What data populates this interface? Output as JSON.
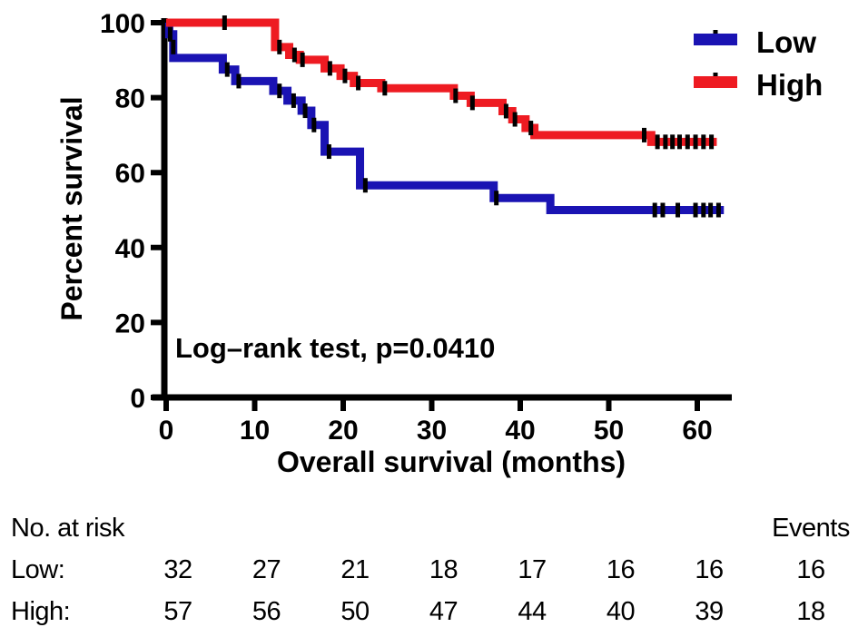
{
  "figure": {
    "y_axis": {
      "title": "Percent survival",
      "ticks": [
        0,
        20,
        40,
        60,
        80,
        100
      ]
    },
    "x_axis": {
      "title": "Overall survival (months)",
      "ticks": [
        0,
        10,
        20,
        30,
        40,
        50,
        60
      ]
    },
    "annotation": "Log–rank test, p=0.0410",
    "legend": [
      {
        "label": "Low",
        "color": "#1a13b3"
      },
      {
        "label": "High",
        "color": "#ee1b22"
      }
    ]
  },
  "chart_data": {
    "type": "line",
    "subtype": "kaplan-meier-step-curve",
    "title": "",
    "xlabel": "Overall survival (months)",
    "ylabel": "Percent survival",
    "xlim": [
      0,
      65
    ],
    "ylim": [
      0,
      100
    ],
    "grid": false,
    "legend_position": "top-right",
    "annotation": "Log–rank test, p=0.0410",
    "series": [
      {
        "name": "Low",
        "color": "#1a13b3",
        "steps": [
          [
            0,
            100
          ],
          [
            0.35,
            96.9
          ],
          [
            0.8,
            90.6
          ],
          [
            6.4,
            87.5
          ],
          [
            7.8,
            84.4
          ],
          [
            12.1,
            81.8
          ],
          [
            13.7,
            79.2
          ],
          [
            15.3,
            76.5
          ],
          [
            16.4,
            72.7
          ],
          [
            17.9,
            65.6
          ],
          [
            21.9,
            56.6
          ],
          [
            37.0,
            53.2
          ],
          [
            43.4,
            50
          ],
          [
            63,
            50
          ]
        ],
        "censor_marks": [
          [
            0.45,
            96.9
          ],
          [
            0.8,
            93.5
          ],
          [
            6.9,
            87.5
          ],
          [
            8.2,
            84.4
          ],
          [
            12.8,
            81.8
          ],
          [
            14.4,
            79.2
          ],
          [
            15.7,
            76.5
          ],
          [
            16.7,
            72.7
          ],
          [
            18.4,
            65.6
          ],
          [
            22.5,
            56.6
          ],
          [
            37.3,
            53.2
          ],
          [
            55.2,
            50
          ],
          [
            56.1,
            50
          ],
          [
            57.8,
            50
          ],
          [
            59.8,
            50
          ],
          [
            60.7,
            50
          ],
          [
            61.5,
            50
          ],
          [
            62.4,
            50
          ]
        ]
      },
      {
        "name": "High",
        "color": "#ee1b22",
        "steps": [
          [
            0,
            100
          ],
          [
            12.3,
            93.5
          ],
          [
            13.9,
            91.4
          ],
          [
            15.1,
            90.1
          ],
          [
            17.9,
            87.8
          ],
          [
            19.7,
            85.8
          ],
          [
            21.2,
            83.9
          ],
          [
            24.3,
            82.5
          ],
          [
            32.5,
            80.5
          ],
          [
            34.4,
            78.6
          ],
          [
            38.0,
            76.4
          ],
          [
            39.1,
            74.2
          ],
          [
            40.6,
            71.9
          ],
          [
            41.6,
            70.0
          ],
          [
            54.8,
            68.2
          ],
          [
            62.2,
            68.2
          ]
        ],
        "censor_marks": [
          [
            6.6,
            100
          ],
          [
            12.8,
            93.5
          ],
          [
            14.5,
            91.4
          ],
          [
            15.4,
            90.1
          ],
          [
            18.5,
            87.8
          ],
          [
            20.2,
            85.8
          ],
          [
            21.7,
            83.9
          ],
          [
            24.7,
            82.5
          ],
          [
            32.7,
            80.5
          ],
          [
            34.6,
            78.6
          ],
          [
            38.4,
            76.4
          ],
          [
            39.4,
            74.2
          ],
          [
            41.2,
            71.9
          ],
          [
            54.0,
            70.0
          ],
          [
            55.5,
            68.2
          ],
          [
            56.4,
            68.2
          ],
          [
            57.2,
            68.2
          ],
          [
            58.0,
            68.2
          ],
          [
            58.9,
            68.2
          ],
          [
            59.8,
            68.2
          ],
          [
            60.7,
            68.2
          ],
          [
            61.6,
            68.2
          ]
        ]
      }
    ]
  },
  "risk_table": {
    "header": "No. at risk",
    "events_header": "Events",
    "time_points": [
      0,
      10,
      20,
      30,
      40,
      50,
      60
    ],
    "rows": [
      {
        "label": "Low:",
        "counts": [
          32,
          27,
          21,
          18,
          17,
          16,
          16
        ],
        "events": 16
      },
      {
        "label": "High:",
        "counts": [
          57,
          56,
          50,
          47,
          44,
          40,
          39
        ],
        "events": 18
      }
    ]
  }
}
